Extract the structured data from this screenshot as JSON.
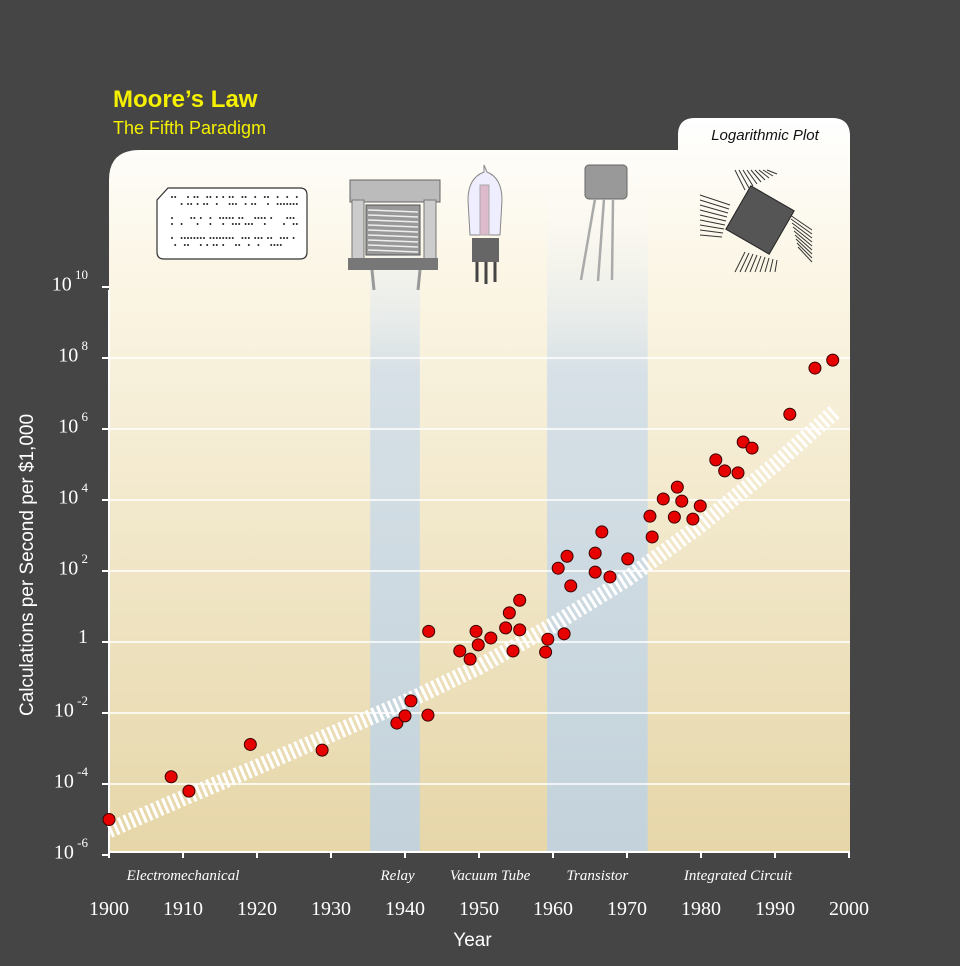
{
  "header": {
    "title": "Moore’s Law",
    "subtitle": "The Fifth Paradigm",
    "tab_label": "Logarithmic Plot"
  },
  "colors": {
    "background": "#454545",
    "title": "#f4f000",
    "point": "#e60000",
    "era_band": "#c9d6df",
    "panel": "#efe3c2"
  },
  "icons": [
    "punch-card-icon",
    "relay-icon",
    "vacuum-tube-icon",
    "transistor-icon",
    "integrated-circuit-icon"
  ],
  "chart_data": {
    "type": "scatter",
    "title": "Moore’s Law",
    "subtitle": "The Fifth Paradigm",
    "annotation": "Logarithmic Plot",
    "xlabel": "Year",
    "ylabel": "Calculations per Second per $1,000",
    "xlim": [
      1900,
      2000
    ],
    "ylim": [
      1e-06,
      10000000000.0
    ],
    "yscale": "log",
    "grid": "horizontal",
    "xticks": [
      "1900",
      "1910",
      "1920",
      "1930",
      "1940",
      "1950",
      "1960",
      "1970",
      "1980",
      "1990",
      "2000"
    ],
    "yticks": [
      {
        "base": "10",
        "exp": "-6",
        "value": 1e-06
      },
      {
        "base": "10",
        "exp": "-4",
        "value": 0.0001
      },
      {
        "base": "10",
        "exp": "-2",
        "value": 0.01
      },
      {
        "base": "1",
        "exp": "",
        "value": 1
      },
      {
        "base": "10",
        "exp": "2",
        "value": 100.0
      },
      {
        "base": "10",
        "exp": "4",
        "value": 10000.0
      },
      {
        "base": "10",
        "exp": "6",
        "value": 1000000.0
      },
      {
        "base": "10",
        "exp": "8",
        "value": 100000000.0
      },
      {
        "base": "10",
        "exp": "10",
        "value": 10000000000.0
      }
    ],
    "eras": [
      {
        "label": "Electromechanical",
        "center": 1910
      },
      {
        "label": "Relay",
        "center": 1939
      },
      {
        "label": "Vacuum Tube",
        "center": 1951.5
      },
      {
        "label": "Transistor",
        "center": 1966
      },
      {
        "label": "Integrated Circuit",
        "center": 1985
      }
    ],
    "era_bands": [
      {
        "from": 1935.3,
        "to": 1942
      },
      {
        "from": 1959.2,
        "to": 1972.8
      }
    ],
    "trend": [
      [
        1900,
        5e-06
      ],
      [
        1910,
        4e-05
      ],
      [
        1920,
        0.0003
      ],
      [
        1930,
        0.0025
      ],
      [
        1940,
        0.02
      ],
      [
        1950,
        0.2
      ],
      [
        1960,
        3
      ],
      [
        1970,
        60
      ],
      [
        1980,
        2000
      ],
      [
        1990,
        100000.0
      ],
      [
        1998,
        3000000.0
      ]
    ],
    "points": [
      [
        1900,
        1e-05
      ],
      [
        1908.4,
        0.00016
      ],
      [
        1910.8,
        6.3e-05
      ],
      [
        1919.1,
        0.0013
      ],
      [
        1928.8,
        0.0009
      ],
      [
        1938.9,
        0.0052
      ],
      [
        1940,
        0.0083
      ],
      [
        1940.8,
        0.022
      ],
      [
        1943.1,
        0.0087
      ],
      [
        1943.2,
        2.0
      ],
      [
        1947.4,
        0.56
      ],
      [
        1948.8,
        0.33
      ],
      [
        1949.6,
        2.0
      ],
      [
        1949.9,
        0.83
      ],
      [
        1951.6,
        1.3
      ],
      [
        1953.6,
        2.5
      ],
      [
        1954.1,
        6.6
      ],
      [
        1954.6,
        0.56
      ],
      [
        1955.5,
        2.2
      ],
      [
        1955.5,
        15
      ],
      [
        1959,
        0.52
      ],
      [
        1959.3,
        1.2
      ],
      [
        1960.7,
        120
      ],
      [
        1961.5,
        1.7
      ],
      [
        1961.9,
        260
      ],
      [
        1962.4,
        38
      ],
      [
        1965.7,
        320
      ],
      [
        1965.7,
        93
      ],
      [
        1966.6,
        1260
      ],
      [
        1967.7,
        68
      ],
      [
        1970.1,
        220
      ],
      [
        1973.1,
        3500
      ],
      [
        1973.4,
        910
      ],
      [
        1974.9,
        10700
      ],
      [
        1976.4,
        3300
      ],
      [
        1976.8,
        23000
      ],
      [
        1977.4,
        9300
      ],
      [
        1978.9,
        2900
      ],
      [
        1979.9,
        6800
      ],
      [
        1982,
        135000
      ],
      [
        1983.2,
        66000
      ],
      [
        1985,
        58000
      ],
      [
        1985.7,
        430000
      ],
      [
        1986.9,
        290000
      ],
      [
        1992,
        2600000.0
      ],
      [
        1995.4,
        52000000.0
      ],
      [
        1997.8,
        87000000.0
      ]
    ]
  }
}
